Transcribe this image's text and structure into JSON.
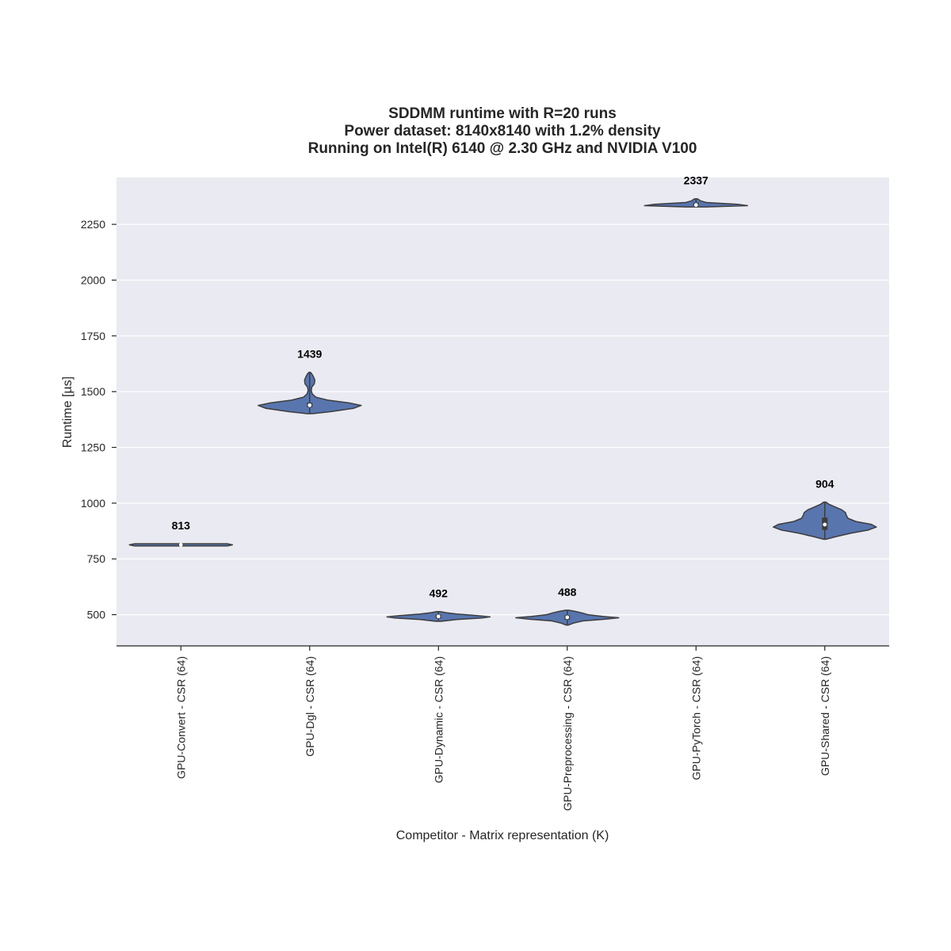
{
  "colors": {
    "plot_background": "#eaeaf2",
    "grid": "#ffffff",
    "violin_fill": "#5875ae",
    "violin_edge": "#3d3d3d",
    "box": "#3d3d3d",
    "median_dot": "#ffffff",
    "axis_line": "#262626"
  },
  "chart_data": {
    "type": "violin",
    "title_lines": [
      "SDDMM runtime with R=20 runs",
      "Power dataset: 8140x8140 with 1.2% density",
      "Running on Intel(R) 6140 @ 2.30 GHz and NVIDIA V100"
    ],
    "xlabel": "Competitor - Matrix representation (K)",
    "ylabel": "Runtime [µs]",
    "ylim": [
      360,
      2460
    ],
    "yticks": [
      500,
      750,
      1000,
      1250,
      1500,
      1750,
      2000,
      2250
    ],
    "grid": true,
    "categories": [
      "GPU-Convert - CSR (64)",
      "GPU-Dgl - CSR (64)",
      "GPU-Dynamic - CSR (64)",
      "GPU-Preprocessing - CSR (64)",
      "GPU-PyTorch - CSR (64)",
      "GPU-Shared - CSR (64)"
    ],
    "medians": [
      813,
      1439,
      492,
      488,
      2337,
      904
    ],
    "median_labels": [
      "813",
      "1439",
      "492",
      "488",
      "2337",
      "904"
    ],
    "distributions": [
      {
        "min": 808,
        "q1": 811,
        "median": 813,
        "q3": 815,
        "max": 818,
        "density": [
          [
            808,
            0.9
          ],
          [
            813,
            1.0
          ],
          [
            818,
            0.9
          ]
        ]
      },
      {
        "min": 1401,
        "q1": 1430,
        "median": 1439,
        "q3": 1450,
        "max": 1587,
        "density": [
          [
            1401,
            0.05
          ],
          [
            1410,
            0.4
          ],
          [
            1425,
            0.85
          ],
          [
            1438,
            1.0
          ],
          [
            1450,
            0.75
          ],
          [
            1462,
            0.35
          ],
          [
            1475,
            0.12
          ],
          [
            1490,
            0.05
          ],
          [
            1505,
            0.03
          ],
          [
            1520,
            0.04
          ],
          [
            1535,
            0.09
          ],
          [
            1552,
            0.1
          ],
          [
            1568,
            0.07
          ],
          [
            1580,
            0.04
          ],
          [
            1587,
            0.01
          ]
        ]
      },
      {
        "min": 470,
        "q1": 484,
        "median": 492,
        "q3": 500,
        "max": 514,
        "density": [
          [
            470,
            0.05
          ],
          [
            478,
            0.35
          ],
          [
            485,
            0.85
          ],
          [
            490,
            1.0
          ],
          [
            496,
            0.75
          ],
          [
            503,
            0.35
          ],
          [
            509,
            0.15
          ],
          [
            514,
            0.03
          ]
        ]
      },
      {
        "min": 453,
        "q1": 478,
        "median": 488,
        "q3": 497,
        "max": 520,
        "density": [
          [
            453,
            0.02
          ],
          [
            462,
            0.12
          ],
          [
            472,
            0.3
          ],
          [
            480,
            0.75
          ],
          [
            486,
            1.0
          ],
          [
            492,
            0.7
          ],
          [
            500,
            0.4
          ],
          [
            508,
            0.28
          ],
          [
            515,
            0.15
          ],
          [
            520,
            0.03
          ]
        ]
      },
      {
        "min": 2328,
        "q1": 2333,
        "median": 2337,
        "q3": 2347,
        "max": 2365,
        "density": [
          [
            2328,
            0.2
          ],
          [
            2334,
            1.0
          ],
          [
            2340,
            0.8
          ],
          [
            2348,
            0.2
          ],
          [
            2356,
            0.08
          ],
          [
            2362,
            0.05
          ],
          [
            2365,
            0.01
          ]
        ]
      },
      {
        "min": 838,
        "q1": 880,
        "median": 904,
        "q3": 935,
        "max": 1005,
        "density": [
          [
            838,
            0.02
          ],
          [
            850,
            0.22
          ],
          [
            865,
            0.5
          ],
          [
            880,
            0.85
          ],
          [
            893,
            1.0
          ],
          [
            905,
            0.9
          ],
          [
            918,
            0.6
          ],
          [
            932,
            0.45
          ],
          [
            945,
            0.42
          ],
          [
            958,
            0.4
          ],
          [
            970,
            0.33
          ],
          [
            983,
            0.2
          ],
          [
            995,
            0.08
          ],
          [
            1005,
            0.02
          ]
        ]
      }
    ]
  }
}
